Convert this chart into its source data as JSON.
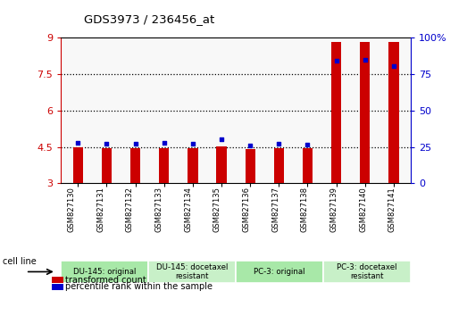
{
  "title": "GDS3973 / 236456_at",
  "samples": [
    "GSM827130",
    "GSM827131",
    "GSM827132",
    "GSM827133",
    "GSM827134",
    "GSM827135",
    "GSM827136",
    "GSM827137",
    "GSM827138",
    "GSM827139",
    "GSM827140",
    "GSM827141"
  ],
  "bar_heights": [
    4.47,
    4.44,
    4.46,
    4.46,
    4.44,
    4.54,
    4.42,
    4.45,
    4.46,
    8.85,
    8.82,
    8.84
  ],
  "bar_bottom": 3.0,
  "bar_color": "#cc0000",
  "dot_values": [
    4.67,
    4.62,
    4.65,
    4.68,
    4.65,
    4.82,
    4.55,
    4.63,
    4.6,
    8.05,
    8.08,
    7.85
  ],
  "dot_color": "#0000cc",
  "ylim_left": [
    3.0,
    9.0
  ],
  "ylim_right": [
    0,
    100
  ],
  "yticks_left": [
    3,
    4.5,
    6,
    7.5,
    9
  ],
  "ytick_labels_left": [
    "3",
    "4.5",
    "6",
    "7.5",
    "9"
  ],
  "yticks_right": [
    0,
    25,
    50,
    75,
    100
  ],
  "ytick_labels_right": [
    "0",
    "25",
    "50",
    "75",
    "100%"
  ],
  "hlines": [
    4.5,
    6.0,
    7.5
  ],
  "groups": [
    {
      "label": "DU-145: original",
      "start": 0,
      "end": 3,
      "color": "#a8e8a8"
    },
    {
      "label": "DU-145: docetaxel\nresistant",
      "start": 3,
      "end": 6,
      "color": "#c8f0c8"
    },
    {
      "label": "PC-3: original",
      "start": 6,
      "end": 9,
      "color": "#a8e8a8"
    },
    {
      "label": "PC-3: docetaxel\nresistant",
      "start": 9,
      "end": 12,
      "color": "#c8f0c8"
    }
  ],
  "cell_line_label": "cell line",
  "legend_bar_label": "transformed count",
  "legend_dot_label": "percentile rank within the sample",
  "left_axis_color": "#cc0000",
  "right_axis_color": "#0000cc",
  "bar_width": 0.35
}
